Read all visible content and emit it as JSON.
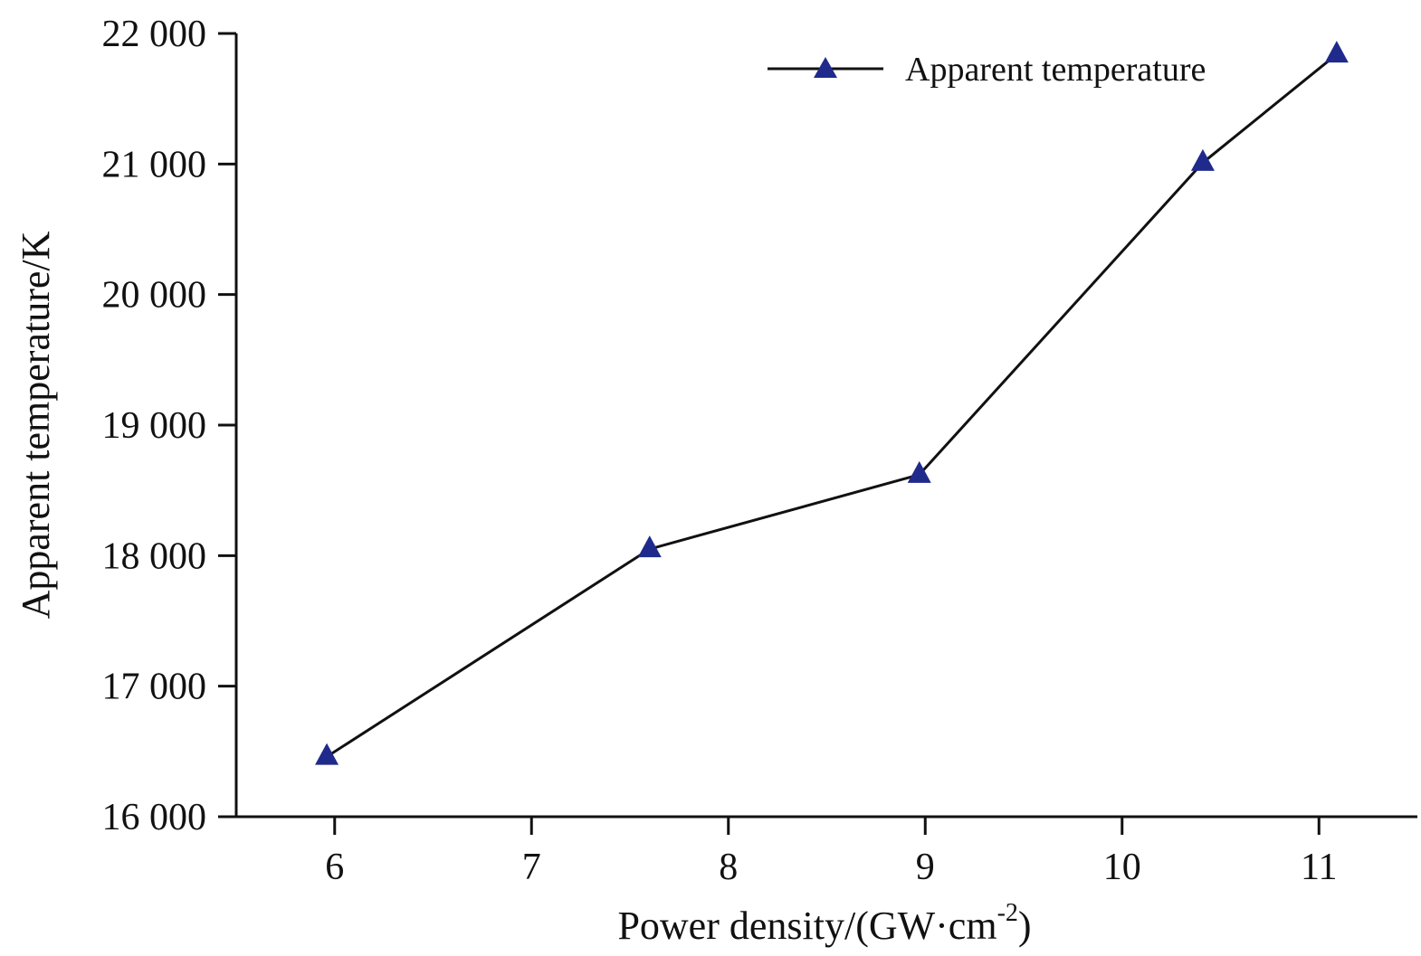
{
  "chart_data": {
    "type": "line",
    "title": "",
    "xlabel": "Power density/(GW·cm",
    "xlabel_sup": "-2",
    "xlabel_close": ")",
    "ylabel": "Apparent temperature/K",
    "xlim": [
      5.5,
      11.5
    ],
    "ylim": [
      16000,
      22000
    ],
    "xticks": [
      6,
      7,
      8,
      9,
      10,
      11
    ],
    "xtick_labels": [
      "6",
      "7",
      "8",
      "9",
      "10",
      "11"
    ],
    "yticks": [
      16000,
      17000,
      18000,
      19000,
      20000,
      21000,
      22000
    ],
    "ytick_labels": [
      "16 000",
      "17 000",
      "18 000",
      "19 000",
      "20 000",
      "21 000",
      "22 000"
    ],
    "grid": false,
    "legend_position": "top-right",
    "series": [
      {
        "name": "Apparent temperature",
        "marker": "triangle",
        "line_color": "#111111",
        "marker_color": "#1f2a8c",
        "x": [
          5.96,
          7.6,
          8.97,
          10.41,
          11.09
        ],
        "y": [
          16460,
          18050,
          18620,
          21010,
          21840
        ]
      }
    ]
  }
}
